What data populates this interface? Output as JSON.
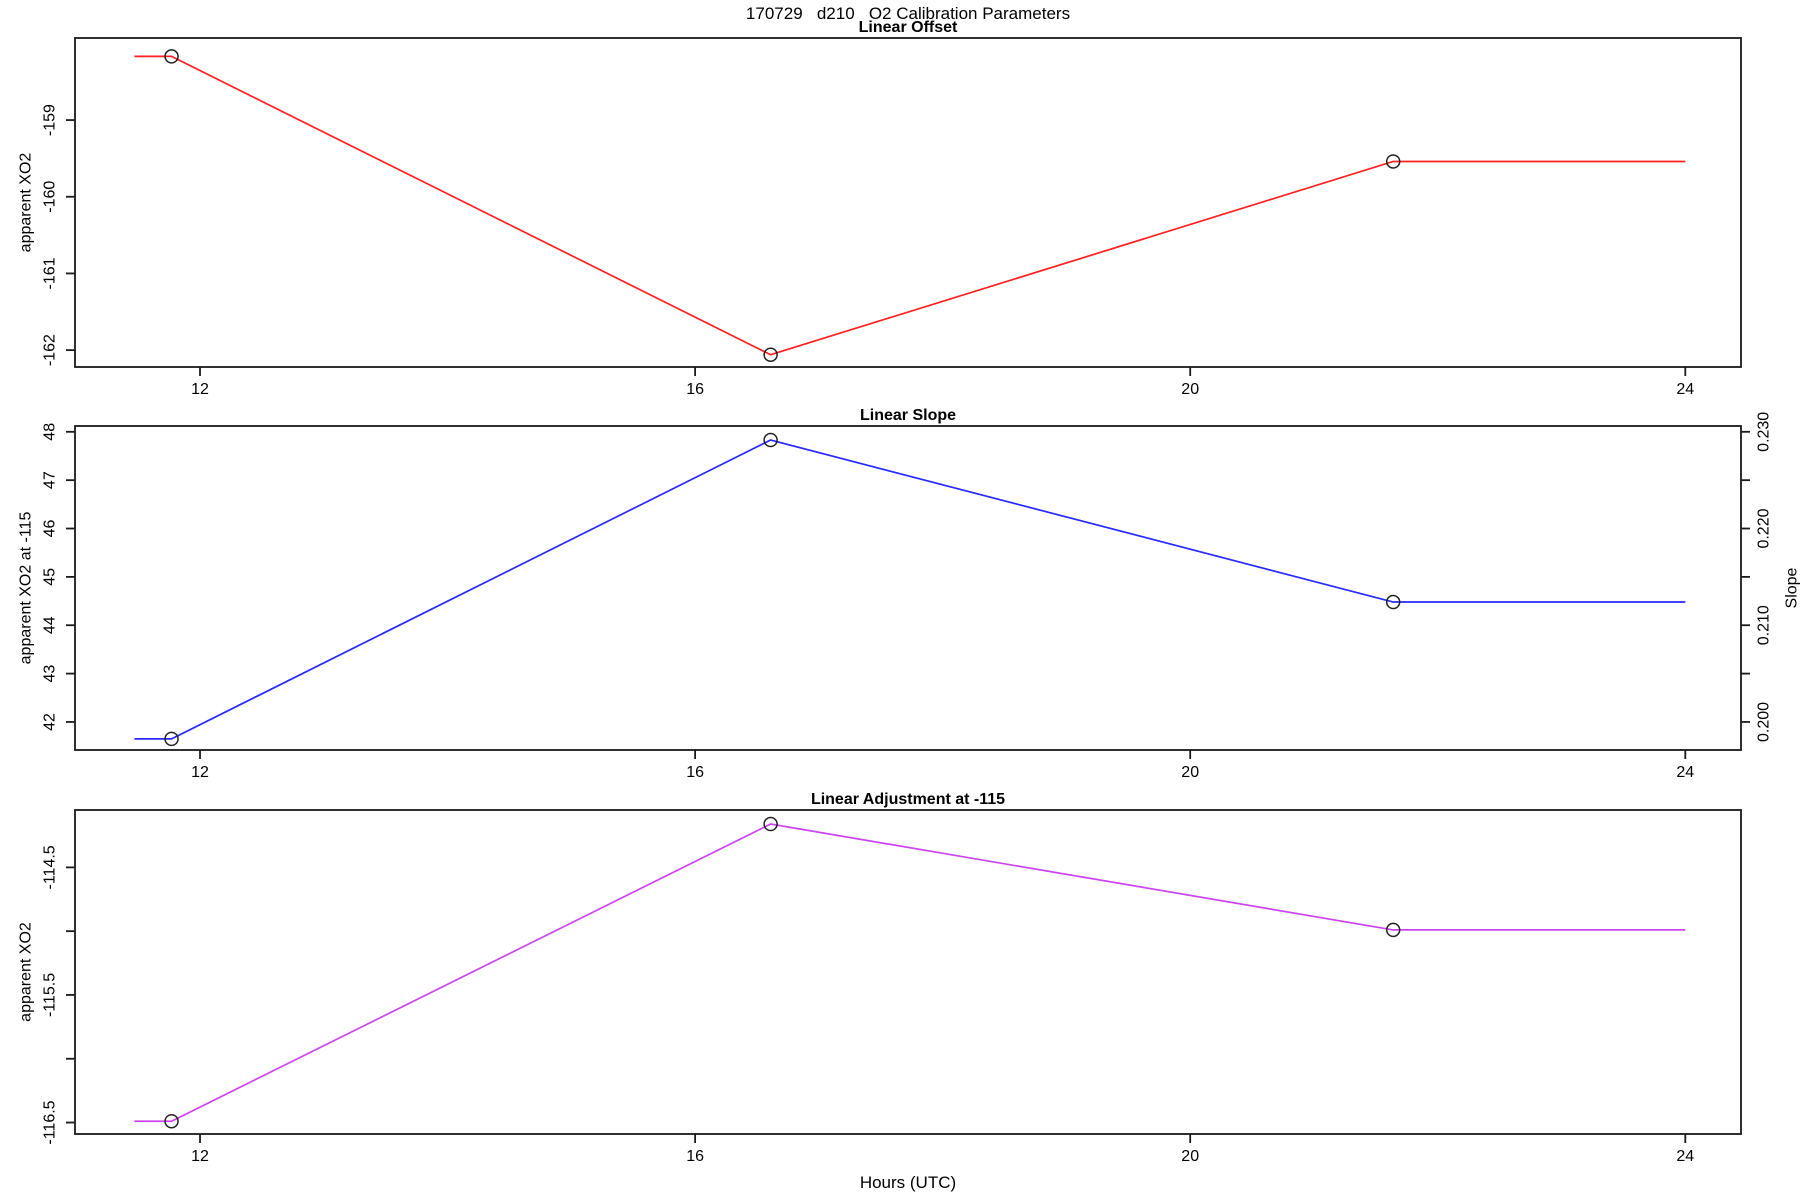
{
  "main_title": "170729   d210   O2 Calibration Parameters",
  "xlabel": "Hours (UTC)",
  "chart_data": [
    {
      "type": "line",
      "title": "Linear Offset",
      "ylabel": "apparent XO2",
      "series_color": "#ff2020",
      "marker": "open-circle",
      "x": [
        11.77,
        16.61,
        21.64
      ],
      "y": [
        -158.17,
        -162.06,
        -159.54
      ],
      "line_extends": {
        "start_x": 11.47,
        "end_x": 24.0
      },
      "xlim": [
        10.99,
        24.45
      ],
      "ylim": [
        -162.22,
        -157.93
      ],
      "x_ticks": [
        12,
        16,
        20,
        24
      ],
      "x_tick_labels": [
        "12",
        "16",
        "20",
        "24"
      ],
      "y_ticks": [
        -159,
        -160,
        -161,
        -162
      ],
      "y_tick_labels": [
        "-159",
        "-160",
        "-161",
        "-162"
      ],
      "grid": false,
      "legend": "none"
    },
    {
      "type": "line",
      "title": "Linear Slope",
      "ylabel": "apparent XO2 at -115",
      "ylabel_right": "Slope",
      "series_color": "#2828ff",
      "marker": "open-circle",
      "x": [
        11.77,
        16.61,
        21.64
      ],
      "y": [
        41.65,
        47.83,
        44.48
      ],
      "y_right": [
        0.1983,
        0.2292,
        0.2124
      ],
      "line_extends": {
        "start_x": 11.47,
        "end_x": 24.0
      },
      "xlim": [
        10.99,
        24.45
      ],
      "ylim": [
        41.42,
        48.12
      ],
      "ylim_right": [
        0.1971,
        0.2306
      ],
      "x_ticks": [
        12,
        16,
        20,
        24
      ],
      "x_tick_labels": [
        "12",
        "16",
        "20",
        "24"
      ],
      "y_ticks": [
        48,
        47,
        46,
        45,
        44,
        43,
        42
      ],
      "y_tick_labels": [
        "48",
        "47",
        "46",
        "45",
        "44",
        "43",
        "42"
      ],
      "y_ticks_right": [
        0.23,
        0.225,
        0.22,
        0.215,
        0.21,
        0.205,
        0.2
      ],
      "y_tick_labels_right": [
        "0.230",
        "",
        "0.220",
        "",
        "0.210",
        "",
        "0.200"
      ],
      "grid": false,
      "legend": "none"
    },
    {
      "type": "line",
      "title": "Linear Adjustment at -115",
      "ylabel": "apparent XO2",
      "series_color": "#cc44ee",
      "marker": "open-circle",
      "x": [
        11.77,
        16.61,
        21.64
      ],
      "y": [
        -116.49,
        -114.16,
        -114.99
      ],
      "line_extends": {
        "start_x": 11.47,
        "end_x": 24.0
      },
      "xlim": [
        10.99,
        24.45
      ],
      "ylim": [
        -116.59,
        -114.05
      ],
      "x_ticks": [
        12,
        16,
        20,
        24
      ],
      "x_tick_labels": [
        "12",
        "16",
        "20",
        "24"
      ],
      "y_ticks": [
        -114.5,
        -115.0,
        -115.5,
        -116.0,
        -116.5
      ],
      "y_tick_labels": [
        "-114.5",
        "",
        "-115.5",
        "",
        "-116.5"
      ],
      "grid": false,
      "legend": "none"
    }
  ]
}
